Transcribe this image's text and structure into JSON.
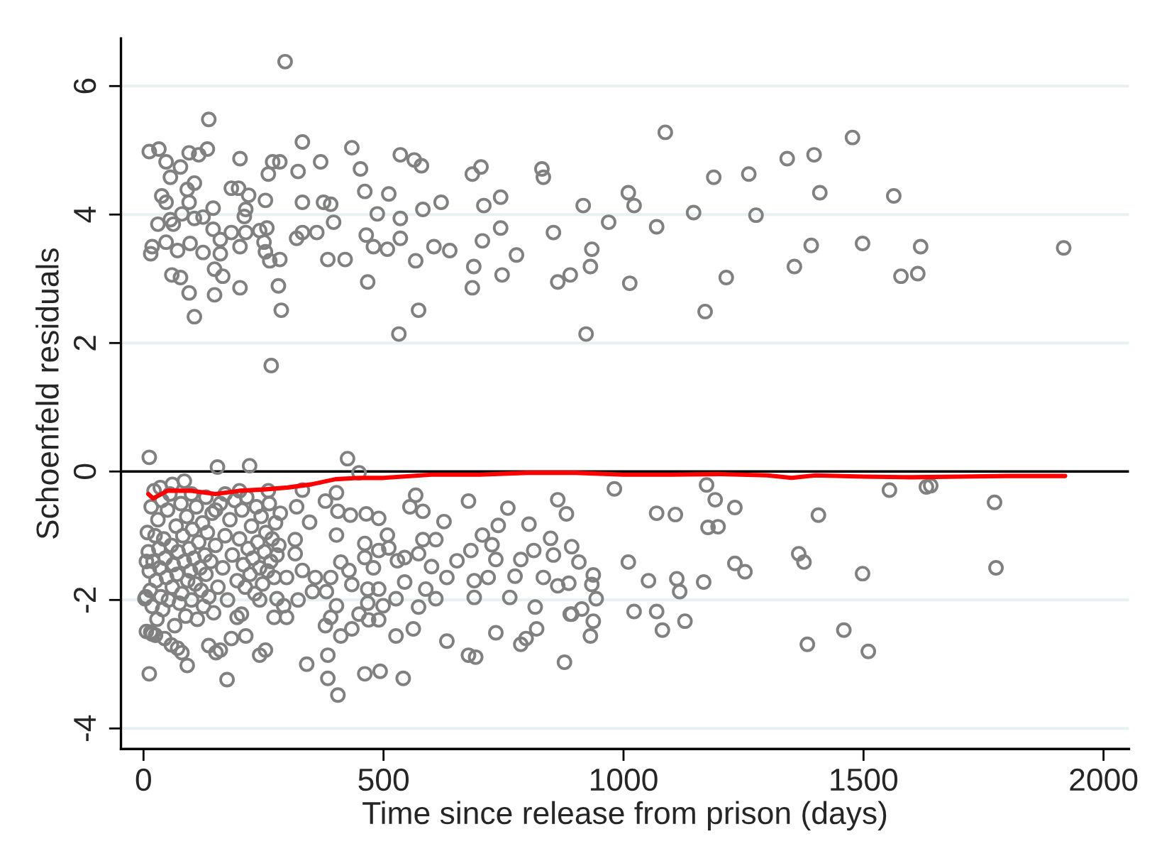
{
  "chart_data": {
    "type": "scatter",
    "xlabel": "Time since release from prison (days)",
    "ylabel": "Schoenfeld residuals",
    "xlim": [
      -47,
      2053
    ],
    "ylim": [
      -4.32,
      6.74
    ],
    "xticks": [
      0,
      500,
      1000,
      1500,
      2000
    ],
    "yticks": [
      -4,
      -2,
      0,
      2,
      4,
      6
    ],
    "grid": "y",
    "legend": false,
    "ref_lines": [
      {
        "axis": "y",
        "value": 0,
        "color": "#000000"
      }
    ],
    "series": [
      {
        "color": "#808080",
        "marker": "circle",
        "x": [
          12,
          32,
          47,
          77,
          56,
          95,
          115,
          133,
          136,
          106,
          91,
          38,
          47,
          95,
          145,
          124,
          106,
          80,
          56,
          30,
          62,
          15,
          18,
          47,
          71,
          97,
          124,
          145,
          160,
          160,
          59,
          77,
          95,
          148,
          165,
          148,
          106,
          183,
          201,
          213,
          201,
          183,
          198,
          219,
          213,
          210,
          201,
          242,
          257,
          254,
          251,
          254,
          263,
          284,
          260,
          269,
          284,
          281,
          287,
          266,
          295,
          331,
          322,
          331,
          319,
          331,
          361,
          369,
          375,
          390,
          396,
          384,
          420,
          434,
          452,
          461,
          487,
          464,
          479,
          467,
          511,
          508,
          535,
          535,
          535,
          564,
          579,
          582,
          567,
          573,
          532,
          620,
          605,
          638,
          685,
          703,
          709,
          744,
          706,
          744,
          688,
          747,
          777,
          685,
          830,
          833,
          854,
          863,
          889,
          916,
          922,
          934,
          931,
          969,
          1010,
          1022,
          1087,
          1069,
          1146,
          1188,
          1013,
          1214,
          1170,
          1261,
          1276,
          1341,
          1397,
          1409,
          1391,
          1356,
          1477,
          1498,
          1563,
          1578,
          1613,
          1619,
          1917,
          12,
          154,
          221,
          425,
          449,
          12,
          91,
          174,
          242,
          254,
          340,
          384,
          384,
          405,
          461,
          493,
          541,
          632,
          677,
          692,
          734,
          786,
          797,
          819,
          877,
          863,
          881,
          677,
          759,
          567,
          555,
          582,
          626,
          803,
          848,
          892,
          907,
          854,
          813,
          786,
          774,
          833,
          863,
          889,
          816,
          763,
          718,
          689,
          689,
          706,
          726,
          739,
          734,
          682,
          653,
          632,
          609,
          582,
          573,
          600,
          588,
          609,
          573,
          562,
          526,
          544,
          544,
          511,
          526,
          499,
          490,
          469,
          449,
          434,
          411,
          379,
          390,
          402,
          381,
          352,
          358,
          390,
          411,
          428,
          434,
          467,
          467,
          490,
          479,
          461,
          490,
          508,
          490,
          464,
          431,
          405,
          402,
          379,
          346,
          319,
          331,
          316,
          402,
          461,
          529,
          316,
          331,
          298,
          278,
          292,
          298,
          322,
          272,
          242,
          204,
          195,
          213,
          183,
          136,
          151,
          160,
          80,
          71,
          6,
          18,
          3,
          8,
          10,
          12,
          14,
          16,
          18,
          20,
          22,
          24,
          26,
          28,
          30,
          32,
          34,
          36,
          38,
          40,
          42,
          45,
          48,
          50,
          52,
          55,
          58,
          60,
          62,
          65,
          68,
          70,
          72,
          75,
          78,
          80,
          82,
          85,
          88,
          90,
          92,
          95,
          98,
          100,
          102,
          105,
          108,
          110,
          112,
          115,
          118,
          120,
          123,
          125,
          128,
          130,
          133,
          136,
          140,
          143,
          146,
          150,
          155,
          160,
          165,
          170,
          175,
          180,
          185,
          190,
          195,
          200,
          205,
          208,
          212,
          215,
          218,
          222,
          225,
          228,
          232,
          235,
          238,
          242,
          245,
          248,
          252,
          255,
          258,
          262,
          265,
          268,
          272,
          275,
          278,
          282,
          285,
          5,
          6,
          15,
          25,
          44,
          58,
          35,
          60,
          85,
          100,
          130,
          150,
          170,
          200,
          260,
          981,
          1069,
          1108,
          1173,
          1191,
          1232,
          1176,
          1197,
          1010,
          1052,
          1111,
          1117,
          1167,
          1232,
          1253,
          1365,
          1376,
          1406,
          1498,
          1554,
          1631,
          1640,
          1773,
          1776,
          1022,
          1069,
          1081,
          1128,
          1383,
          1459,
          1510,
          937,
          934,
          943,
          913,
          892,
          937,
          931,
          886
        ],
        "values": [
          4.98,
          5.02,
          4.82,
          4.74,
          4.58,
          4.96,
          4.93,
          5.02,
          5.48,
          4.49,
          4.39,
          4.29,
          4.19,
          4.19,
          4.1,
          3.96,
          3.94,
          4.01,
          3.92,
          3.85,
          3.85,
          3.39,
          3.5,
          3.57,
          3.44,
          3.55,
          3.41,
          3.77,
          3.61,
          3.39,
          3.06,
          3.02,
          2.78,
          3.15,
          3.04,
          2.75,
          2.41,
          3.72,
          3.5,
          3.72,
          2.86,
          4.41,
          4.41,
          4.3,
          4.08,
          3.97,
          4.87,
          3.75,
          3.79,
          4.22,
          3.57,
          3.42,
          3.28,
          3.3,
          4.63,
          4.82,
          4.82,
          2.89,
          2.51,
          1.65,
          6.38,
          5.13,
          4.67,
          4.19,
          3.63,
          3.72,
          3.72,
          4.82,
          4.19,
          4.16,
          3.88,
          3.3,
          3.3,
          5.04,
          4.71,
          4.36,
          4.01,
          3.68,
          3.5,
          2.95,
          4.32,
          3.46,
          3.63,
          3.94,
          4.93,
          4.85,
          4.76,
          4.08,
          3.28,
          2.51,
          2.14,
          4.19,
          3.5,
          3.44,
          4.63,
          4.74,
          4.14,
          4.27,
          3.59,
          3.79,
          3.19,
          3.06,
          3.37,
          2.86,
          4.71,
          4.58,
          3.72,
          2.95,
          3.06,
          4.14,
          2.14,
          3.46,
          3.19,
          3.88,
          4.34,
          4.14,
          5.28,
          3.81,
          4.03,
          4.58,
          2.93,
          3.02,
          2.49,
          4.63,
          3.99,
          4.87,
          4.93,
          4.34,
          3.52,
          3.19,
          5.2,
          3.55,
          4.29,
          3.04,
          3.08,
          3.5,
          3.48,
          0.22,
          0.07,
          0.09,
          0.2,
          -0.02,
          -3.15,
          -3.02,
          -3.24,
          -2.86,
          -2.78,
          -3.0,
          -2.86,
          -3.22,
          -3.48,
          -3.15,
          -3.11,
          -3.22,
          -2.64,
          -2.86,
          -2.89,
          -2.51,
          -2.69,
          -2.6,
          -2.45,
          -2.97,
          -0.44,
          -0.66,
          -0.46,
          -0.57,
          -0.37,
          -0.55,
          -0.62,
          -0.78,
          -0.82,
          -1.04,
          -1.17,
          -1.41,
          -1.3,
          -1.23,
          -1.37,
          -1.63,
          -1.65,
          -1.78,
          -2.22,
          -2.11,
          -1.96,
          -1.65,
          -1.7,
          -1.96,
          -0.99,
          -1.14,
          -0.84,
          -1.37,
          -1.23,
          -1.39,
          -1.65,
          -1.06,
          -1.06,
          -1.28,
          -1.48,
          -1.83,
          -1.98,
          -2.11,
          -2.45,
          -2.56,
          -1.72,
          -1.34,
          -1.19,
          -1.98,
          -2.09,
          -2.31,
          -2.31,
          -2.22,
          -2.45,
          -2.56,
          -2.4,
          -2.27,
          -2.09,
          -1.87,
          -1.87,
          -1.65,
          -1.65,
          -1.41,
          -1.54,
          -1.76,
          -2.05,
          -1.83,
          -1.83,
          -1.5,
          -1.34,
          -1.23,
          -0.99,
          -0.73,
          -0.66,
          -0.68,
          -0.62,
          -0.33,
          -0.46,
          -0.79,
          -0.55,
          -0.29,
          -1.06,
          -0.99,
          -1.12,
          -1.39,
          -1.28,
          -1.54,
          -1.65,
          -1.98,
          -2.09,
          -2.27,
          -2.0,
          -2.27,
          -2.0,
          -2.22,
          -2.27,
          -2.56,
          -2.6,
          -2.71,
          -2.82,
          -2.78,
          -2.82,
          -2.75,
          -2.49,
          -2.53,
          -1.98,
          -0.95,
          -1.25,
          -1.55,
          -1.85,
          -0.55,
          -2.1,
          -1.4,
          -0.3,
          -1.0,
          -1.7,
          -2.3,
          -0.75,
          -1.2,
          -1.5,
          -1.95,
          -0.45,
          -2.15,
          -1.05,
          -1.35,
          -1.65,
          -0.6,
          -2.0,
          -0.35,
          -1.15,
          -1.8,
          -1.45,
          -2.4,
          -0.85,
          -1.6,
          -1.25,
          -2.05,
          -0.5,
          -1.9,
          -1.0,
          -1.4,
          -2.25,
          -0.7,
          -1.7,
          -1.2,
          -1.55,
          -2.0,
          -0.9,
          -1.35,
          -1.75,
          -0.55,
          -2.3,
          -1.1,
          -1.5,
          -1.85,
          -0.8,
          -2.1,
          -1.3,
          -1.6,
          -0.95,
          -1.95,
          -1.4,
          -0.65,
          -2.2,
          -1.15,
          -1.8,
          -0.5,
          -1.5,
          -1.0,
          -2.0,
          -0.75,
          -1.3,
          -0.45,
          -1.7,
          -1.05,
          -0.6,
          -1.45,
          -1.8,
          -0.4,
          -1.2,
          -1.6,
          -0.85,
          -1.35,
          -1.9,
          -0.55,
          -1.1,
          -1.5,
          -0.7,
          -1.75,
          -1.25,
          -0.95,
          -1.55,
          -0.5,
          -1.4,
          -1.05,
          -1.65,
          -0.8,
          -1.3,
          -1.15,
          -0.65,
          -1.95,
          -1.4,
          -2.5,
          -2.55,
          -2.6,
          -2.7,
          -0.25,
          -0.2,
          -0.15,
          -0.35,
          -0.4,
          -0.6,
          -0.35,
          -0.3,
          -0.3,
          -0.27,
          -0.65,
          -0.67,
          -0.21,
          -0.44,
          -0.56,
          -0.87,
          -0.86,
          -1.41,
          -1.7,
          -1.67,
          -1.87,
          -1.72,
          -1.43,
          -1.56,
          -1.28,
          -1.41,
          -0.68,
          -1.59,
          -0.29,
          -0.24,
          -0.22,
          -0.48,
          -1.5,
          -2.18,
          -2.18,
          -2.47,
          -2.33,
          -2.69,
          -2.47,
          -2.8,
          -1.61,
          -1.76,
          -1.98,
          -2.14,
          -2.22,
          -2.33,
          -2.56,
          -1.74
        ]
      },
      {
        "type": "line",
        "color": "#ff0000",
        "x": [
          10,
          20,
          50,
          100,
          150,
          200,
          250,
          300,
          350,
          400,
          450,
          500,
          600,
          700,
          800,
          900,
          1000,
          1100,
          1200,
          1300,
          1350,
          1400,
          1500,
          1600,
          1700,
          1800,
          1920
        ],
        "values": [
          -0.35,
          -0.42,
          -0.3,
          -0.3,
          -0.35,
          -0.3,
          -0.28,
          -0.25,
          -0.2,
          -0.12,
          -0.1,
          -0.1,
          -0.05,
          -0.05,
          -0.02,
          -0.02,
          -0.05,
          -0.05,
          -0.04,
          -0.06,
          -0.1,
          -0.06,
          -0.08,
          -0.09,
          -0.08,
          -0.07,
          -0.07
        ]
      }
    ]
  }
}
